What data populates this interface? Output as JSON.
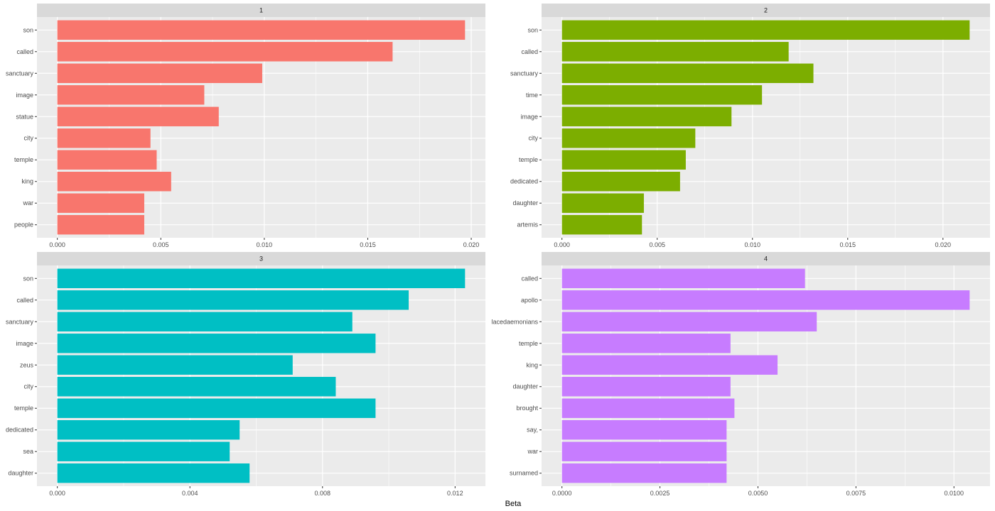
{
  "chart_data": {
    "type": "bar",
    "orientation": "horizontal",
    "facet": "wrap",
    "xlabel": "Beta",
    "ylabel": "",
    "grid": true,
    "legend": "none",
    "panels": [
      {
        "strip": "1",
        "color": "#F8766D",
        "categories": [
          "son",
          "called",
          "sanctuary",
          "image",
          "statue",
          "city",
          "temple",
          "king",
          "war",
          "people"
        ],
        "values": [
          0.0197,
          0.0162,
          0.0099,
          0.0071,
          0.0078,
          0.0045,
          0.0048,
          0.0055,
          0.0042,
          0.0042
        ],
        "xticks": [
          "0.000",
          "0.005",
          "0.010",
          "0.015",
          "0.020"
        ],
        "xtick_values": [
          0,
          0.005,
          0.01,
          0.015,
          0.02
        ]
      },
      {
        "strip": "2",
        "color": "#7CAE00",
        "categories": [
          "son",
          "called",
          "sanctuary",
          "time",
          "image",
          "city",
          "temple",
          "dedicated",
          "daughter",
          "artemis"
        ],
        "values": [
          0.0214,
          0.0119,
          0.0132,
          0.0105,
          0.0089,
          0.007,
          0.0065,
          0.0062,
          0.0043,
          0.0042
        ],
        "xticks": [
          "0.000",
          "0.005",
          "0.010",
          "0.015",
          "0.020"
        ],
        "xtick_values": [
          0,
          0.005,
          0.01,
          0.015,
          0.02
        ]
      },
      {
        "strip": "3",
        "color": "#00BFC4",
        "categories": [
          "son",
          "called",
          "sanctuary",
          "image",
          "zeus",
          "city",
          "temple",
          "dedicated",
          "sea",
          "daughter"
        ],
        "values": [
          0.0123,
          0.0106,
          0.0089,
          0.0096,
          0.0071,
          0.0084,
          0.0096,
          0.0055,
          0.0052,
          0.0058
        ],
        "xticks": [
          "0.000",
          "0.004",
          "0.008",
          "0.012"
        ],
        "xtick_values": [
          0,
          0.004,
          0.008,
          0.012
        ]
      },
      {
        "strip": "4",
        "color": "#C77CFF",
        "categories": [
          "called",
          "apollo",
          "lacedaemonians",
          "temple",
          "king",
          "daughter",
          "brought",
          "say,",
          "war",
          "surnamed"
        ],
        "values": [
          0.0062,
          0.0104,
          0.0065,
          0.0043,
          0.0055,
          0.0043,
          0.0044,
          0.0042,
          0.0042,
          0.0042
        ],
        "xticks": [
          "0.0000",
          "0.0025",
          "0.0050",
          "0.0075",
          "0.0100"
        ],
        "xtick_values": [
          0,
          0.0025,
          0.005,
          0.0075,
          0.01
        ]
      }
    ]
  }
}
